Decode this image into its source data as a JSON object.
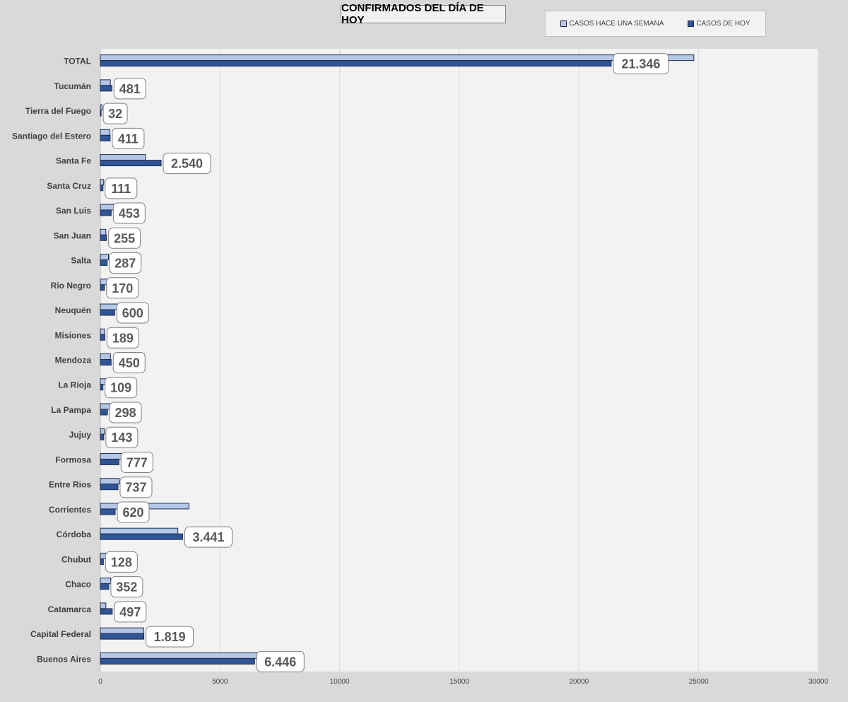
{
  "chart_data": {
    "type": "bar",
    "orientation": "horizontal",
    "title": "CONFIRMADOS DEL DÍA DE HOY",
    "categories": [
      "TOTAL",
      "Tucumán",
      "Tierra del Fuego",
      "Santiago del Estero",
      "Santa Fe",
      "Santa Cruz",
      "San Luis",
      "San Juan",
      "Salta",
      "Rio Negro",
      "Neuquén",
      "Misiones",
      "Mendoza",
      "La Rioja",
      "La Pampa",
      "Jujuy",
      "Formosa",
      "Entre Rios",
      "Corrientes",
      "Córdoba",
      "Chubut",
      "Chaco",
      "Catamarca",
      "Capital Federal",
      "Buenos Aires"
    ],
    "series": [
      {
        "name": "CASOS HACE UNA SEMANA",
        "color": "#b4c7e7",
        "values": [
          24800,
          420,
          70,
          400,
          1880,
          140,
          560,
          230,
          340,
          300,
          720,
          170,
          420,
          230,
          420,
          170,
          880,
          790,
          3700,
          3240,
          270,
          430,
          230,
          1810,
          6650
        ]
      },
      {
        "name": "CASOS DE HOY",
        "color": "#2f5597",
        "values": [
          21346,
          481,
          32,
          411,
          2540,
          111,
          453,
          255,
          287,
          170,
          600,
          189,
          450,
          109,
          298,
          143,
          777,
          737,
          620,
          3441,
          128,
          352,
          497,
          1819,
          6446
        ]
      }
    ],
    "data_labels": [
      "21.346",
      "481",
      "32",
      "411",
      "2.540",
      "111",
      "453",
      "255",
      "287",
      "170",
      "600",
      "189",
      "450",
      "109",
      "298",
      "143",
      "777",
      "737",
      "620",
      "3.441",
      "128",
      "352",
      "497",
      "1.819",
      "6.446"
    ],
    "xlim": [
      0,
      30000
    ],
    "x_ticks": [
      "0",
      "5000",
      "10000",
      "15000",
      "20000",
      "25000",
      "30000"
    ],
    "grid": "vertical",
    "legend_position": "top-right"
  },
  "colors": {
    "plot_bg": "#f2f2f2",
    "page_bg": "#d9d9d9",
    "grid": "#d9d9d9"
  }
}
